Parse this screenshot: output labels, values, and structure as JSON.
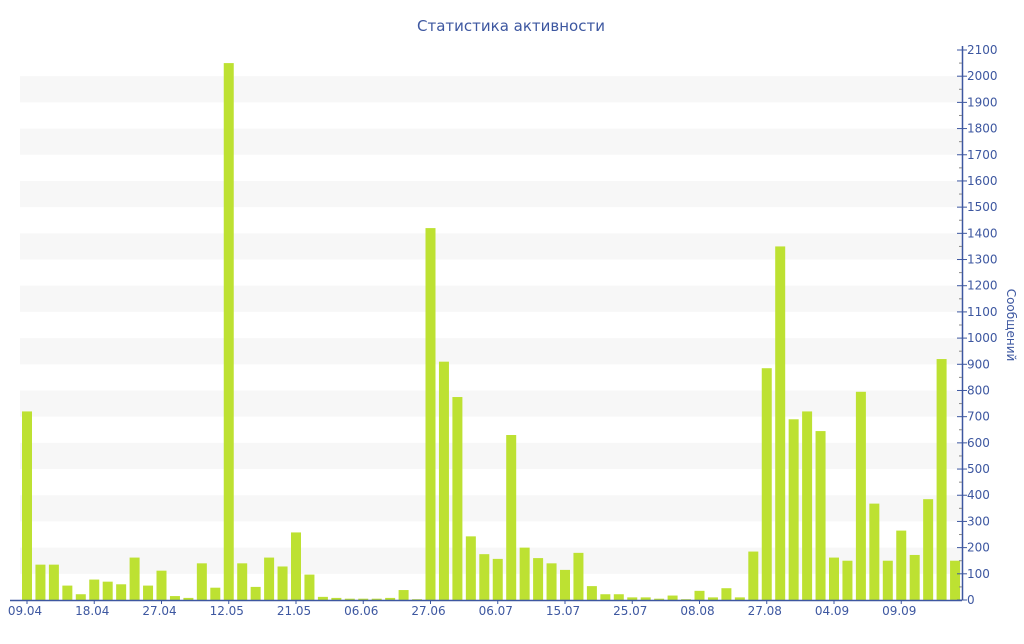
{
  "chart_data": {
    "type": "bar",
    "title": "Статистика активности",
    "xlabel": "",
    "ylabel": "Сообщений",
    "ylim": [
      0,
      2100
    ],
    "y_major_step": 100,
    "grid": "alternating horizontal bands",
    "y_axis_side": "right",
    "bar_color": "#bde132",
    "x_tick_labels": [
      "09.04",
      "18.04",
      "27.04",
      "12.05",
      "21.05",
      "06.06",
      "27.06",
      "06.07",
      "15.07",
      "25.07",
      "08.08",
      "27.08",
      "04.09",
      "09.09"
    ],
    "x_tick_every": 5,
    "values": [
      720,
      135,
      135,
      55,
      22,
      78,
      70,
      60,
      162,
      55,
      112,
      15,
      8,
      140,
      47,
      2050,
      140,
      50,
      162,
      128,
      258,
      97,
      12,
      8,
      5,
      5,
      5,
      8,
      38,
      3,
      1420,
      910,
      775,
      243,
      175,
      157,
      630,
      200,
      160,
      140,
      115,
      180,
      53,
      22,
      22,
      10,
      10,
      5,
      17,
      3,
      35,
      10,
      45,
      10,
      185,
      885,
      1350,
      690,
      720,
      645,
      162,
      150,
      795,
      368,
      150,
      265,
      172,
      385,
      920,
      150
    ]
  }
}
